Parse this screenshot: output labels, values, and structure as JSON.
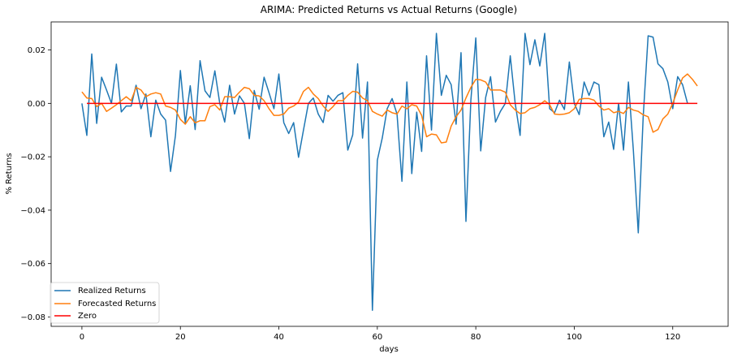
{
  "chart_data": {
    "type": "line",
    "title": "ARIMA: Predicted Returns vs Actual Returns (Google)",
    "xlabel": "days",
    "ylabel": "% Returns",
    "xlim": [
      -6.25,
      131.25
    ],
    "ylim": [
      -0.0835,
      0.0305
    ],
    "xticks": [
      0,
      20,
      40,
      60,
      80,
      100,
      120
    ],
    "yticks": [
      -0.08,
      -0.06,
      -0.04,
      -0.02,
      0.0,
      0.02
    ],
    "xtick_labels": [
      "0",
      "20",
      "40",
      "60",
      "80",
      "100",
      "120"
    ],
    "ytick_labels": [
      "−0.08",
      "−0.06",
      "−0.04",
      "−0.02",
      "0.00",
      "0.02"
    ],
    "grid": false,
    "legend_position": "lower-left",
    "series": [
      {
        "name": "Realized Returns",
        "color": "#1f77b4",
        "x_start": 0,
        "values": [
          0.0,
          -0.012,
          0.0185,
          -0.0075,
          0.0098,
          0.005,
          0.0,
          0.0147,
          -0.0032,
          -0.001,
          -0.001,
          0.0068,
          -0.002,
          0.0035,
          -0.0125,
          0.0012,
          -0.004,
          -0.0063,
          -0.0255,
          -0.012,
          0.0123,
          -0.0075,
          0.0066,
          -0.0098,
          0.016,
          0.0047,
          0.0022,
          0.0122,
          0.0,
          -0.007,
          0.0068,
          -0.004,
          0.0028,
          0.0,
          -0.0132,
          0.0048,
          -0.0022,
          0.0098,
          0.004,
          -0.002,
          0.011,
          -0.0072,
          -0.0113,
          -0.0072,
          -0.0202,
          -0.01,
          0.0,
          0.002,
          -0.004,
          -0.0072,
          0.003,
          0.0008,
          0.003,
          0.004,
          -0.0175,
          -0.0118,
          0.0148,
          -0.013,
          0.008,
          -0.0775,
          -0.0213,
          -0.013,
          -0.002,
          0.0018,
          -0.004,
          -0.0292,
          0.008,
          -0.0263,
          -0.0033,
          -0.018,
          0.0178,
          -0.01,
          0.0262,
          0.003,
          0.0105,
          0.007,
          -0.0078,
          0.019,
          -0.0442,
          0.0012,
          0.0245,
          -0.0178,
          0.0022,
          0.01,
          -0.007,
          -0.003,
          0.0,
          0.0178,
          0.0,
          -0.012,
          0.0262,
          0.0145,
          0.0238,
          0.014,
          0.0262,
          -0.002,
          -0.0035,
          0.0012,
          -0.0023,
          0.0155,
          0.0,
          -0.0042,
          0.008,
          0.003,
          0.008,
          0.007,
          -0.0125,
          -0.007,
          -0.0172,
          0.0,
          -0.0175,
          0.008,
          -0.0175,
          -0.0485,
          -0.005,
          0.0253,
          0.0248,
          0.0148,
          0.013,
          0.008,
          -0.002,
          0.01,
          0.007,
          0.0
        ]
      },
      {
        "name": "Forecasted Returns",
        "color": "#ff7f0e",
        "x_start": 0,
        "values": [
          0.0043,
          0.002,
          0.0018,
          -0.0012,
          0.0,
          -0.003,
          -0.0018,
          -0.0005,
          0.001,
          0.0025,
          0.001,
          0.006,
          0.005,
          0.0025,
          0.0035,
          0.004,
          0.0035,
          -0.001,
          -0.0015,
          -0.0025,
          -0.006,
          -0.0078,
          -0.005,
          -0.0073,
          -0.0065,
          -0.0065,
          -0.0012,
          -0.0005,
          -0.0025,
          0.0025,
          0.0025,
          0.0022,
          0.0042,
          0.006,
          0.0055,
          0.003,
          0.0028,
          0.001,
          -0.002,
          -0.0045,
          -0.0045,
          -0.004,
          -0.0018,
          -0.001,
          0.0005,
          0.0045,
          0.006,
          0.0035,
          0.0018,
          -0.001,
          -0.003,
          -0.0012,
          0.001,
          0.001,
          0.003,
          0.0045,
          0.0042,
          0.002,
          0.001,
          -0.003,
          -0.004,
          -0.0048,
          -0.0025,
          -0.0035,
          -0.004,
          -0.001,
          -0.002,
          -0.0005,
          -0.001,
          -0.0045,
          -0.0125,
          -0.0115,
          -0.0118,
          -0.0148,
          -0.0145,
          -0.0085,
          -0.005,
          -0.0025,
          0.002,
          0.006,
          0.009,
          0.0088,
          0.008,
          0.005,
          0.005,
          0.005,
          0.0042,
          -0.0005,
          -0.0025,
          -0.0038,
          -0.0035,
          -0.002,
          -0.0015,
          -0.0005,
          0.001,
          -0.0005,
          -0.004,
          -0.0042,
          -0.004,
          -0.0035,
          -0.002,
          0.0015,
          0.0018,
          0.0018,
          0.0012,
          -0.001,
          -0.0025,
          -0.002,
          -0.0035,
          -0.003,
          -0.0038,
          -0.0015,
          -0.0025,
          -0.003,
          -0.0043,
          -0.005,
          -0.0108,
          -0.0098,
          -0.0058,
          -0.004,
          0.0,
          0.005,
          0.0095,
          0.011,
          0.009,
          0.0065
        ]
      },
      {
        "name": "Zero",
        "color": "#ff0000",
        "x": [
          1,
          125
        ],
        "y": [
          0.0,
          0.0
        ]
      }
    ]
  }
}
